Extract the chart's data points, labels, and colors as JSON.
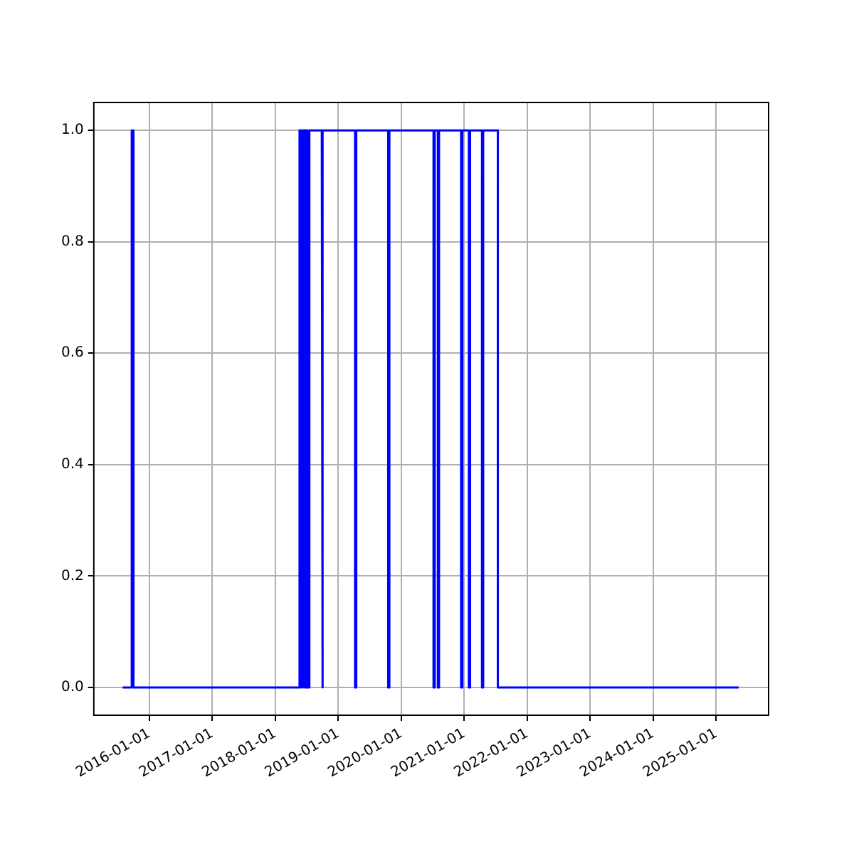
{
  "chart_data": {
    "type": "line",
    "x": [
      "2015-07-31",
      "2015-09-22",
      "2015-09-22",
      "2015-10-02",
      "2015-10-02",
      "2018-05-22",
      "2018-05-22",
      "2018-06-02",
      "2018-06-02",
      "2018-06-06",
      "2018-06-06",
      "2018-06-15",
      "2018-06-15",
      "2018-06-19",
      "2018-06-19",
      "2018-06-27",
      "2018-06-27",
      "2018-07-01",
      "2018-07-01",
      "2018-07-10",
      "2018-07-10",
      "2018-07-18",
      "2018-07-18",
      "2018-09-28",
      "2018-09-28",
      "2018-10-05",
      "2018-10-05",
      "2019-04-09",
      "2019-04-09",
      "2019-04-16",
      "2019-04-16",
      "2019-10-18",
      "2019-10-18",
      "2019-10-25",
      "2019-10-25",
      "2020-07-07",
      "2020-07-07",
      "2020-07-14",
      "2020-07-14",
      "2020-08-01",
      "2020-08-01",
      "2020-08-08",
      "2020-08-08",
      "2020-12-14",
      "2020-12-14",
      "2020-12-21",
      "2020-12-21",
      "2021-01-28",
      "2021-01-28",
      "2021-02-04",
      "2021-02-04",
      "2021-04-14",
      "2021-04-14",
      "2021-04-21",
      "2021-04-21",
      "2021-07-15",
      "2021-07-15",
      "2025-05-11"
    ],
    "series": [
      {
        "color": "#0000ff",
        "values": [
          0,
          0,
          1,
          1,
          0,
          0,
          1,
          1,
          0,
          0,
          1,
          1,
          0,
          0,
          1,
          1,
          0,
          0,
          1,
          1,
          0,
          0,
          1,
          1,
          0,
          0,
          1,
          1,
          0,
          0,
          1,
          1,
          0,
          0,
          1,
          1,
          0,
          0,
          1,
          1,
          0,
          0,
          1,
          1,
          0,
          0,
          1,
          1,
          0,
          0,
          1,
          1,
          0,
          0,
          1,
          1,
          0,
          0
        ]
      }
    ],
    "xlim": [
      "2015-02-14",
      "2025-11-01"
    ],
    "xticks": [
      "2016-01-01",
      "2017-01-01",
      "2018-01-01",
      "2019-01-01",
      "2020-01-01",
      "2021-01-01",
      "2022-01-01",
      "2023-01-01",
      "2024-01-01",
      "2025-01-01"
    ],
    "ylim": [
      -0.05,
      1.05
    ],
    "yticks": [
      {
        "value": 0,
        "label": "0.0"
      },
      {
        "value": 0.2,
        "label": "0.2"
      },
      {
        "value": 0.4,
        "label": "0.4"
      },
      {
        "value": 0.6,
        "label": "0.6"
      },
      {
        "value": 0.8,
        "label": "0.8"
      },
      {
        "value": 1,
        "label": "1.0"
      }
    ],
    "grid": true,
    "legend": false,
    "marker": "none",
    "line_style": "solid"
  }
}
